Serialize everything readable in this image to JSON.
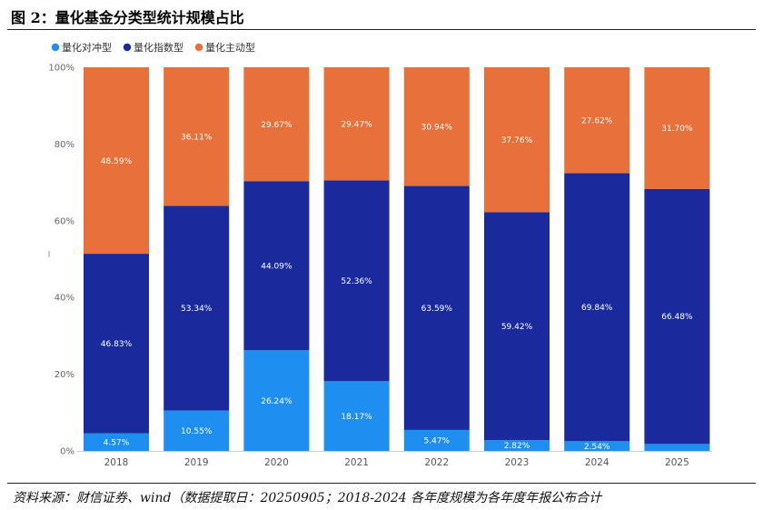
{
  "figure": {
    "title": "图 2：量化基金分类型统计规模占比",
    "source": "资料来源：财信证券、wind（数据提取日：20250905；2018-2024 各年度规模为各年度年报公布合计"
  },
  "colors": {
    "hedge": "#1f8ef1",
    "index": "#1a2a9c",
    "active": "#e8703a"
  },
  "chart_data": {
    "type": "bar",
    "stacked": true,
    "categories": [
      "2018",
      "2019",
      "2020",
      "2021",
      "2022",
      "2023",
      "2024",
      "2025"
    ],
    "series": [
      {
        "name": "量化对冲型",
        "values": [
          4.57,
          10.55,
          26.24,
          18.17,
          5.47,
          2.82,
          2.54,
          1.82
        ],
        "labels": [
          "4.57%",
          "10.55%",
          "26.24%",
          "18.17%",
          "5.47%",
          "2.82%",
          "2.54%",
          ""
        ]
      },
      {
        "name": "量化指数型",
        "values": [
          46.83,
          53.34,
          44.09,
          52.36,
          63.59,
          59.42,
          69.84,
          66.48
        ],
        "labels": [
          "46.83%",
          "53.34%",
          "44.09%",
          "52.36%",
          "63.59%",
          "59.42%",
          "69.84%",
          "66.48%"
        ]
      },
      {
        "name": "量化主动型",
        "values": [
          48.59,
          36.11,
          29.67,
          29.47,
          30.94,
          37.76,
          27.62,
          31.7
        ],
        "labels": [
          "48.59%",
          "36.11%",
          "29.67%",
          "29.47%",
          "30.94%",
          "37.76%",
          "27.62%",
          "31.70%"
        ]
      }
    ],
    "yticks": [
      "0%",
      "20%",
      "40%",
      "60%",
      "80%",
      "100%"
    ],
    "ylim": [
      0,
      100
    ],
    "grid": false,
    "legend_position": "top-left"
  }
}
